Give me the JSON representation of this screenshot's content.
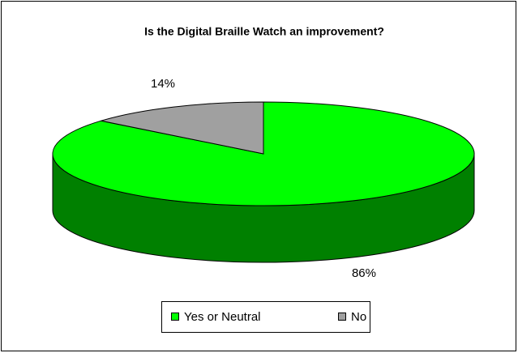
{
  "chart_data": {
    "type": "pie",
    "title": "Is the Digital Braille Watch an improvement?",
    "categories": [
      "Yes or Neutral",
      "No"
    ],
    "values": [
      86,
      14
    ],
    "value_labels": [
      "86%",
      "14%"
    ],
    "colors": [
      "#00ff00",
      "#a0a0a0"
    ],
    "legend": "bottom"
  }
}
